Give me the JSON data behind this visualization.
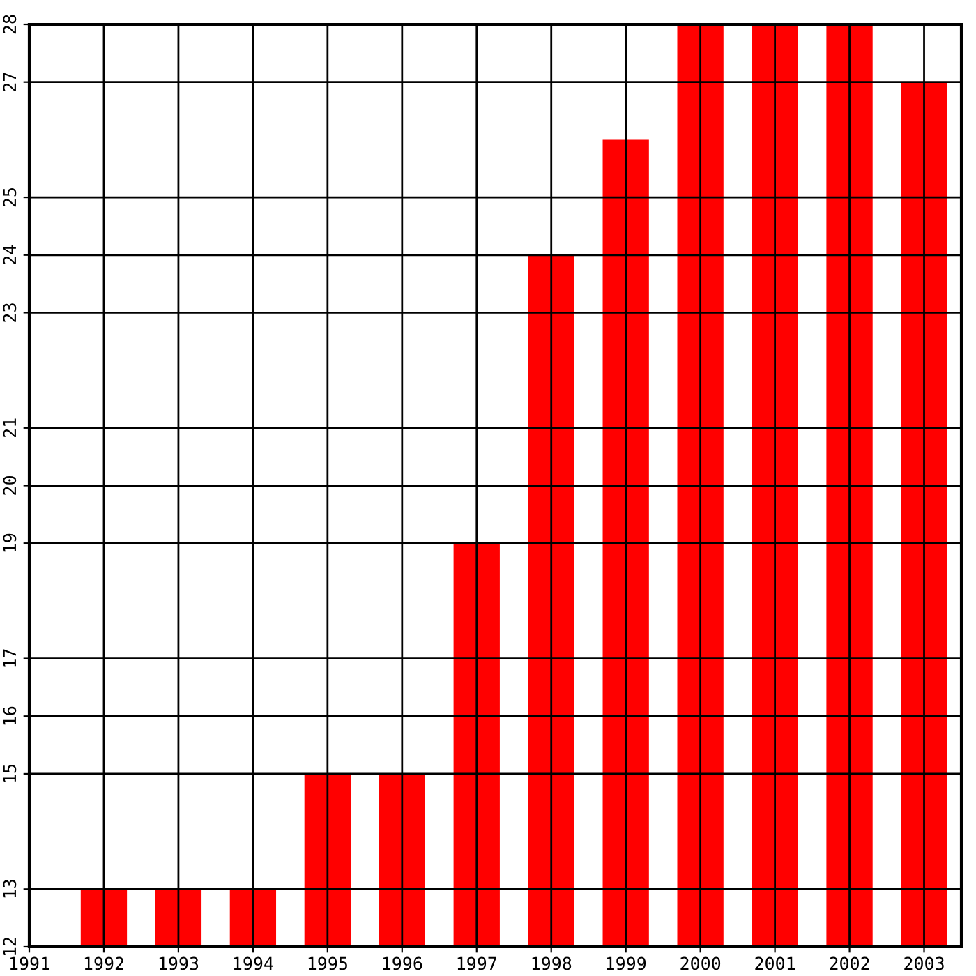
{
  "chart_data": {
    "type": "bar",
    "x": [
      1992,
      1993,
      1994,
      1995,
      1996,
      1997,
      1998,
      1999,
      2000,
      2001,
      2002,
      2003
    ],
    "values": [
      13,
      13,
      13,
      15,
      15,
      19,
      24,
      26,
      28,
      28,
      28,
      27
    ],
    "color": "#ff0000",
    "xlim": [
      1991,
      2003.5
    ],
    "xticks": [
      1991,
      1992,
      1993,
      1994,
      1995,
      1996,
      1997,
      1998,
      1999,
      2000,
      2001,
      2002,
      2003
    ],
    "ylim": [
      12,
      28
    ],
    "yticks": [
      12,
      13,
      15,
      16,
      17,
      19,
      20,
      21,
      23,
      24,
      25,
      27,
      28
    ],
    "grid": true
  }
}
